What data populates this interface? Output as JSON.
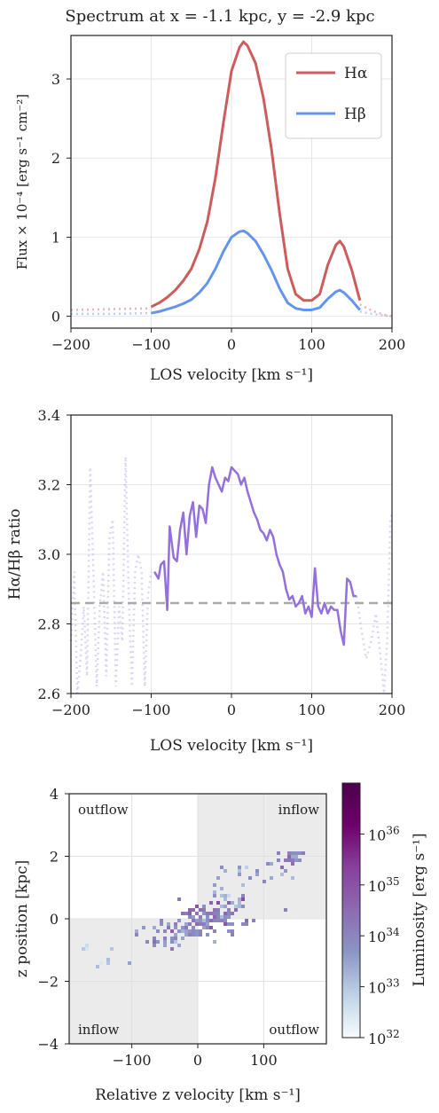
{
  "suptitle": "Spectrum at x = -1.1 kpc, y = -2.9 kpc",
  "colors": {
    "halpha": "#cd5c5c",
    "hbeta": "#6495ed",
    "ratio": "#9370db",
    "ref_line": "#a9a9a9",
    "quadrant_shade": "#ebebeb"
  },
  "chart_data": [
    {
      "type": "line",
      "xlabel": "LOS velocity [km s⁻¹]",
      "ylabel": "Flux × 10⁻⁴ [erg s⁻¹ cm⁻²]",
      "xlim": [
        -200,
        200
      ],
      "ylim": [
        -0.15,
        3.55
      ],
      "xticks": [
        "-200",
        "-100",
        "0",
        "100",
        "200"
      ],
      "yticks": [
        "0",
        "1",
        "2",
        "3"
      ],
      "legend": "top-right",
      "series": [
        {
          "name": "Hα",
          "color": "#cd5c5c",
          "x": [
            -100,
            -90,
            -80,
            -70,
            -60,
            -50,
            -40,
            -30,
            -20,
            -10,
            0,
            10,
            15,
            20,
            30,
            40,
            50,
            60,
            70,
            80,
            90,
            100,
            110,
            120,
            130,
            135,
            140,
            150,
            160
          ],
          "y": [
            0.12,
            0.17,
            0.24,
            0.33,
            0.45,
            0.6,
            0.85,
            1.2,
            1.75,
            2.45,
            3.1,
            3.4,
            3.47,
            3.42,
            3.2,
            2.75,
            2.1,
            1.3,
            0.6,
            0.28,
            0.2,
            0.2,
            0.28,
            0.65,
            0.9,
            0.95,
            0.88,
            0.58,
            0.2
          ],
          "dotted_left": {
            "x": [
              -200,
              -150,
              -100
            ],
            "y": [
              0.08,
              0.09,
              0.1
            ]
          },
          "dotted_right": {
            "x": [
              160,
              175,
              190,
              200
            ],
            "y": [
              0.15,
              0.07,
              0.02,
              0.0
            ]
          }
        },
        {
          "name": "Hβ",
          "color": "#6495ed",
          "x": [
            -100,
            -90,
            -80,
            -70,
            -60,
            -50,
            -40,
            -30,
            -20,
            -10,
            0,
            10,
            15,
            20,
            30,
            40,
            50,
            60,
            70,
            80,
            90,
            100,
            110,
            120,
            130,
            135,
            140,
            150,
            160
          ],
          "y": [
            0.04,
            0.06,
            0.09,
            0.12,
            0.16,
            0.21,
            0.3,
            0.42,
            0.6,
            0.82,
            1.0,
            1.07,
            1.08,
            1.05,
            0.95,
            0.78,
            0.58,
            0.35,
            0.17,
            0.1,
            0.08,
            0.08,
            0.11,
            0.22,
            0.31,
            0.33,
            0.3,
            0.2,
            0.08
          ],
          "dotted_left": {
            "x": [
              -200,
              -150,
              -100
            ],
            "y": [
              0.03,
              0.03,
              0.04
            ]
          },
          "dotted_right": {
            "x": [
              160,
              175,
              190,
              200
            ],
            "y": [
              0.06,
              0.03,
              0.01,
              0.0
            ]
          }
        }
      ]
    },
    {
      "type": "line",
      "xlabel": "LOS velocity [km s⁻¹]",
      "ylabel": "Hα/Hβ ratio",
      "xlim": [
        -200,
        200
      ],
      "ylim": [
        2.6,
        3.4
      ],
      "xticks": [
        "-200",
        "-100",
        "0",
        "100",
        "200"
      ],
      "yticks": [
        "2.6",
        "2.8",
        "3.0",
        "3.2",
        "3.4"
      ],
      "reference_value": 2.86,
      "series": [
        {
          "color": "#9370db",
          "x": [
            -96,
            -91,
            -88,
            -84,
            -80,
            -77,
            -72,
            -68,
            -64,
            -60,
            -56,
            -52,
            -48,
            -44,
            -40,
            -36,
            -32,
            -28,
            -24,
            -20,
            -16,
            -12,
            -8,
            -4,
            0,
            4,
            8,
            12,
            16,
            20,
            24,
            28,
            32,
            36,
            40,
            44,
            48,
            52,
            56,
            60,
            64,
            68,
            72,
            76,
            80,
            84,
            88,
            92,
            96,
            100,
            104,
            108,
            112,
            116,
            120,
            124,
            128,
            132,
            136,
            140,
            144,
            148,
            152,
            156
          ],
          "y": [
            2.95,
            2.93,
            2.97,
            2.98,
            2.84,
            3.08,
            2.99,
            2.98,
            3.07,
            3.12,
            3.0,
            3.11,
            3.15,
            3.05,
            3.14,
            3.13,
            3.09,
            3.2,
            3.25,
            3.22,
            3.2,
            3.18,
            3.22,
            3.21,
            3.25,
            3.24,
            3.23,
            3.2,
            3.22,
            3.18,
            3.15,
            3.12,
            3.1,
            3.07,
            3.06,
            3.04,
            3.07,
            3.05,
            3.0,
            2.97,
            2.95,
            2.9,
            2.87,
            2.88,
            2.85,
            2.86,
            2.88,
            2.83,
            2.85,
            2.82,
            2.96,
            2.85,
            2.83,
            2.86,
            2.83,
            2.85,
            2.84,
            2.84,
            2.78,
            2.74,
            2.93,
            2.92,
            2.88,
            2.88
          ],
          "dotted_left": {
            "x": [
              -200,
              -196,
              -192,
              -188,
              -184,
              -180,
              -176,
              -172,
              -168,
              -164,
              -160,
              -156,
              -152,
              -148,
              -144,
              -140,
              -136,
              -132,
              -128,
              -124,
              -120,
              -116,
              -112,
              -108,
              -104,
              -100
            ],
            "y": [
              2.75,
              2.95,
              2.6,
              2.7,
              2.85,
              2.65,
              3.25,
              2.95,
              2.62,
              2.85,
              2.95,
              2.65,
              3.05,
              3.1,
              2.62,
              2.85,
              2.75,
              3.28,
              2.88,
              2.62,
              2.95,
              3.0,
              2.95,
              2.62,
              2.88,
              2.95
            ]
          },
          "dotted_right": {
            "x": [
              156,
              162,
              168,
              174,
              180,
              186,
              190,
              194,
              198,
              200
            ],
            "y": [
              2.88,
              2.78,
              2.7,
              2.75,
              2.83,
              2.7,
              2.6,
              2.75,
              3.1,
              3.12
            ]
          }
        }
      ]
    },
    {
      "type": "heatmap",
      "xlabel": "Relative z velocity [km s⁻¹]",
      "ylabel": "z position [kpc]",
      "xlim": [
        -195,
        195
      ],
      "ylim": [
        -4,
        4
      ],
      "xticks": [
        "-100",
        "0",
        "100"
      ],
      "yticks": [
        "-4",
        "-2",
        "0",
        "2",
        "4"
      ],
      "shaded_quadrants": [
        "top-right",
        "bottom-left"
      ],
      "quadrant_labels": {
        "top_left": "outflow",
        "top_right": "inflow",
        "bottom_left": "inflow",
        "bottom_right": "outflow"
      },
      "colorbar": {
        "label": "Luminosity [erg s⁻¹]",
        "scale": "log",
        "range": [
          1e+32,
          1e+37
        ],
        "tick_bases": [
          "10",
          "10",
          "10",
          "10",
          "10"
        ],
        "tick_exponents": [
          "32",
          "33",
          "34",
          "35",
          "36"
        ],
        "colormap": [
          "#f7fcfd",
          "#bfd3e6",
          "#8c96c6",
          "#8c6bb1",
          "#88419d",
          "#6e016b",
          "#4d004b"
        ]
      },
      "clusters": [
        {
          "x": 20,
          "y": 0.2,
          "count": 70,
          "spread_x": 28,
          "spread_y": 0.28,
          "logL": 34.3
        },
        {
          "x": -40,
          "y": -0.45,
          "count": 45,
          "spread_x": 35,
          "spread_y": 0.22,
          "logL": 33.8
        },
        {
          "x": 5,
          "y": -0.1,
          "count": 40,
          "spread_x": 25,
          "spread_y": 0.15,
          "logL": 34.0
        },
        {
          "x": 140,
          "y": 1.95,
          "count": 22,
          "spread_x": 10,
          "spread_y": 0.15,
          "logL": 34.0
        },
        {
          "x": 80,
          "y": 1.65,
          "count": 18,
          "spread_x": 28,
          "spread_y": 0.2,
          "logL": 33.5
        },
        {
          "x": 30,
          "y": 1.0,
          "count": 8,
          "spread_x": 12,
          "spread_y": 0.3,
          "logL": 33.2
        },
        {
          "x": -145,
          "y": -1.2,
          "count": 6,
          "spread_x": 20,
          "spread_y": 0.15,
          "logL": 32.8
        },
        {
          "x": -175,
          "y": -0.9,
          "count": 4,
          "spread_x": 10,
          "spread_y": 0.1,
          "logL": 32.7
        },
        {
          "x": 60,
          "y": 0.5,
          "count": 10,
          "spread_x": 10,
          "spread_y": 0.15,
          "logL": 33.6
        }
      ]
    }
  ]
}
